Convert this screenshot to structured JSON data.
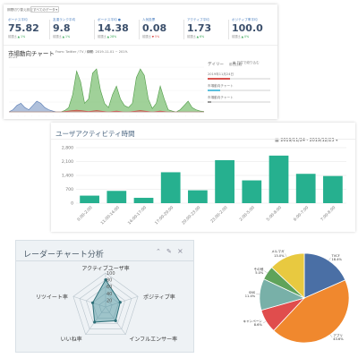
{
  "top": {
    "selector_label": "期間切り替え設定",
    "selector_value": "すべてのデータ",
    "stats": [
      {
        "label": "ボーナス平均",
        "value": "75.82",
        "sub_prefix": "前週比",
        "sub_change": "▲ 1%",
        "trend": "up"
      },
      {
        "label": "友達ランク平均",
        "value": "9.8",
        "sub_prefix": "前週比",
        "sub_change": "▲ 1%",
        "trend": "up"
      },
      {
        "label": "ボーナス平均 ●",
        "value": "14.38",
        "sub_prefix": "前週比",
        "sub_change": "▲ 28%",
        "trend": "up"
      },
      {
        "label": "人気投票",
        "value": "0.08",
        "sub_prefix": "前週比",
        "sub_change": "▼ 5%",
        "trend": "down"
      },
      {
        "label": "アクティブ平均",
        "value": "1.73",
        "sub_prefix": "前週比",
        "sub_change": "▲ 6%",
        "trend": "up"
      },
      {
        "label": "ポジティブ率平均",
        "value": "100.0",
        "sub_prefix": "前週比",
        "sub_change": "▲ 0%",
        "trend": "up"
      }
    ],
    "market_chart_title": "市場動向チャート",
    "market_chart_source": "From: Twitter / TV / CM",
    "market_chart_period": "期間: 2019-11-01 ~ 2019-",
    "market_chart_subline": "10:23",
    "right_link": "日付で絞り込む",
    "daily_title": "デイリー",
    "daily_sub": "前日比較",
    "daily_items": [
      {
        "label": "2019年11月24日",
        "fill": 0.35,
        "color": "#d9534f"
      },
      {
        "label": "市場動向チャート",
        "fill": 0.2,
        "color": "#5bc0de"
      },
      {
        "label": "市場動向チャート",
        "fill": 0.05,
        "color": "#999999"
      }
    ]
  },
  "bar_panel": {
    "title": "ユーザアクティビティ時間",
    "date_range": "2019/11/24 - 2019/12/23",
    "calendar_icon": "calendar-icon",
    "dropdown_icon": "caret-down-icon"
  },
  "chart_data": [
    {
      "type": "bar",
      "title": "",
      "categories": [
        "0:00-2:00",
        "11:00-14:00",
        "14:00-17:00",
        "17:00-20:00",
        "20:00-23:00",
        "23:00-2:00",
        "2:00-5:00",
        "5:00-8:00",
        "6:00-7:00",
        "7:00-8:00"
      ],
      "values": [
        380,
        620,
        270,
        1560,
        650,
        2170,
        1150,
        2400,
        1480,
        1370
      ],
      "ylim": [
        0,
        2800
      ],
      "yticks": [
        "0",
        "700",
        "1,400",
        "2,100",
        "2,800"
      ],
      "color": "#26b08f",
      "grid": true
    },
    {
      "type": "radar",
      "title": "レーダーチャート分析",
      "categories": [
        "アクティブユーザ率",
        "ポジティブ率",
        "インフルエンサー率",
        "いいね率",
        "リツイート率"
      ],
      "values": [
        80,
        45,
        50,
        55,
        40
      ],
      "rticks": [
        "20",
        "40",
        "60",
        "80",
        "100"
      ],
      "rmax": 100
    },
    {
      "type": "pie",
      "series": [
        {
          "name": "TVCF\n18.4%",
          "value": 18.4,
          "color": "#4a6fa5"
        },
        {
          "name": "アプリ\n43.6%",
          "value": 43.6,
          "color": "#f0882e"
        },
        {
          "name": "キャンペーン\n8.6%",
          "value": 8.6,
          "color": "#e04d4d"
        },
        {
          "name": "SNS\n11.4%",
          "value": 11.4,
          "color": "#78b0a8"
        },
        {
          "name": "その他\n5.0%",
          "value": 5.0,
          "color": "#5fa35a"
        },
        {
          "name": "メルマガ\n13.0%",
          "value": 13.0,
          "color": "#e8c940"
        }
      ]
    }
  ],
  "market_series": {
    "green": [
      0,
      0,
      0,
      0,
      0,
      0,
      0,
      0,
      0,
      0,
      0,
      0,
      0,
      0,
      3,
      10,
      40,
      95,
      70,
      20,
      30,
      90,
      100,
      50,
      20,
      10,
      40,
      60,
      30,
      15,
      10,
      20,
      80,
      100,
      85,
      30,
      8,
      20,
      60,
      30,
      5,
      2,
      0,
      5,
      15,
      25,
      10,
      5,
      2,
      1
    ],
    "blue": [
      0,
      5,
      15,
      20,
      10,
      5,
      15,
      25,
      20,
      10,
      5,
      2,
      0,
      0,
      0,
      0,
      0,
      0,
      0,
      0,
      0,
      0,
      0,
      0,
      0,
      0,
      0,
      0,
      0,
      0,
      0,
      0,
      0,
      0,
      0,
      0,
      0,
      0,
      0,
      0,
      0,
      0,
      0,
      0,
      0,
      0,
      0,
      0,
      0,
      0
    ],
    "red": [
      0,
      0,
      0,
      0,
      0,
      0,
      0,
      0,
      0,
      0,
      0,
      0,
      0,
      0,
      1,
      2,
      3,
      4,
      3,
      2,
      1,
      2,
      3,
      2,
      1,
      0,
      1,
      2,
      1,
      0,
      0,
      1,
      2,
      3,
      2,
      1,
      0,
      1,
      2,
      1,
      0,
      0,
      0,
      0,
      0,
      0,
      0,
      0,
      0,
      0
    ]
  }
}
